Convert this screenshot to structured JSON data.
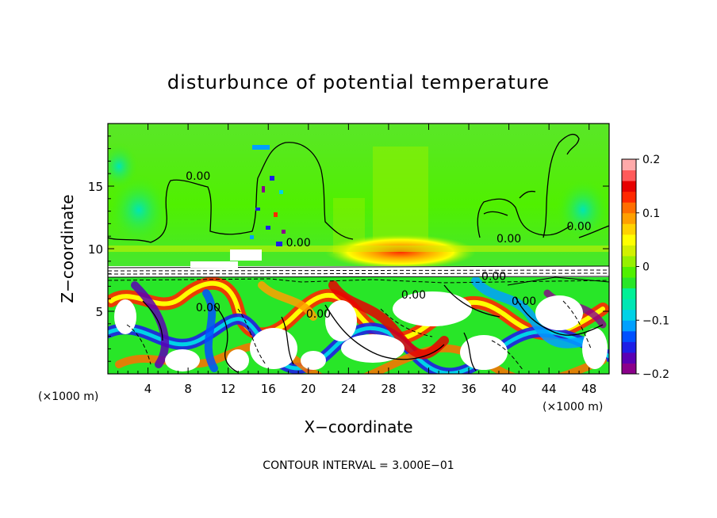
{
  "chart_data": {
    "type": "heatmap",
    "title": "disturbunce of potential temperature",
    "xlabel": "X−coordinate",
    "ylabel": "Z−coordinate",
    "x_unit_left": "(×1000 m)",
    "x_unit_right": "(×1000 m)",
    "footer": "CONTOUR INTERVAL = 3.000E−01",
    "xlim": [
      0,
      50
    ],
    "ylim": [
      0,
      20
    ],
    "x_ticks": [
      4,
      8,
      12,
      16,
      20,
      24,
      28,
      32,
      36,
      40,
      44,
      48
    ],
    "x_tick_labels": [
      "4",
      "8",
      "12",
      "16",
      "20",
      "24",
      "28",
      "32",
      "36",
      "40",
      "44",
      "48"
    ],
    "y_ticks": [
      5,
      10,
      15
    ],
    "y_tick_labels": [
      "5",
      "10",
      "15"
    ],
    "colorbar": {
      "range": [
        -0.2,
        0.2
      ],
      "ticks": [
        0.2,
        0.1,
        0,
        -0.1,
        -0.2
      ],
      "labels": [
        "0.2",
        "0.1",
        "0",
        "−0.1",
        "−0.2"
      ],
      "colors": [
        "#8b008b",
        "#5a00b4",
        "#1e1ee6",
        "#0050ff",
        "#00a0ff",
        "#00d2e6",
        "#00e6b4",
        "#00f096",
        "#28e628",
        "#50f000",
        "#96f000",
        "#d2f000",
        "#ffff00",
        "#ffd200",
        "#ffa000",
        "#ff6e00",
        "#ff2800",
        "#e60000",
        "#ff5a5a",
        "#ffaaaa"
      ]
    },
    "contour_labels": [
      {
        "text": "0.00",
        "x": 9.0,
        "z": 15.5
      },
      {
        "text": "0.00",
        "x": 19.0,
        "z": 10.2
      },
      {
        "text": "0.00",
        "x": 40.0,
        "z": 10.5
      },
      {
        "text": "0.00",
        "x": 47.0,
        "z": 11.5
      },
      {
        "text": "0.00",
        "x": 38.5,
        "z": 7.5
      },
      {
        "text": "0.00",
        "x": 30.5,
        "z": 6.0
      },
      {
        "text": "0.00",
        "x": 10.0,
        "z": 5.0
      },
      {
        "text": "0.00",
        "x": 21.0,
        "z": 4.5
      },
      {
        "text": "0.00",
        "x": 41.5,
        "z": 5.5
      }
    ],
    "fields": [
      {
        "region": "upper",
        "z_range": [
          8.5,
          20
        ],
        "dominant_value": 0.02
      },
      {
        "region": "warm-band",
        "x_range": [
          24,
          34
        ],
        "z_range": [
          9.0,
          11.5
        ],
        "dominant_value": 0.12
      },
      {
        "region": "lower-turbulent",
        "z_range": [
          0,
          8.5
        ],
        "value_range": [
          -0.2,
          0.2
        ]
      }
    ]
  }
}
